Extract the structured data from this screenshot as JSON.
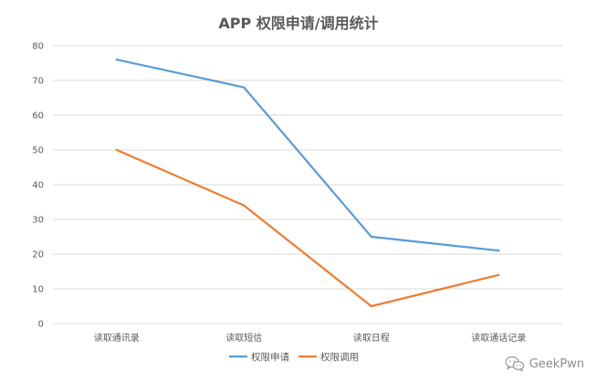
{
  "chart_data": {
    "type": "line",
    "title": "APP 权限申请/调用统计",
    "categories": [
      "读取通讯录",
      "读取短信",
      "读取日程",
      "读取通话记录"
    ],
    "series": [
      {
        "name": "权限申请",
        "values": [
          76,
          68,
          25,
          21
        ],
        "color": "#5b9bd5"
      },
      {
        "name": "权限调用",
        "values": [
          50,
          34,
          5,
          14
        ],
        "color": "#ed7d31"
      }
    ],
    "ylim": [
      0,
      80
    ],
    "yticks": [
      0,
      10,
      20,
      30,
      40,
      50,
      60,
      70,
      80
    ],
    "xlabel": "",
    "ylabel": "",
    "grid": true,
    "legend_position": "bottom"
  },
  "watermark": {
    "text": "GeekPwn",
    "icon": "wechat-icon"
  }
}
